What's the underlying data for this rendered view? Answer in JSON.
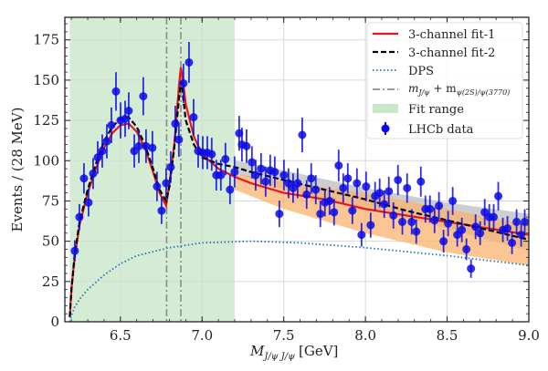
{
  "chart_data": {
    "type": "scatter",
    "title": "",
    "xlabel_main": "M",
    "xlabel_sub": "J/ψ J/ψ",
    "xlabel_unit": "[GeV]",
    "ylabel": "Events / (28 MeV)",
    "xlim": [
      6.16,
      9.0
    ],
    "ylim": [
      0,
      189
    ],
    "xticks": [
      6.5,
      7.0,
      7.5,
      8.0,
      8.5,
      9.0
    ],
    "xtick_labels": [
      "6.5",
      "7.0",
      "7.5",
      "8.0",
      "8.5",
      "9.0"
    ],
    "yticks": [
      0,
      25,
      50,
      75,
      100,
      125,
      150,
      175
    ],
    "ytick_labels": [
      "0",
      "25",
      "50",
      "75",
      "100",
      "125",
      "150",
      "175"
    ],
    "grid": true,
    "legend_position": "top-right",
    "legend": [
      {
        "key": "fit1",
        "label": "3-channel fit-1",
        "style": "solid",
        "color": "#e8161b"
      },
      {
        "key": "fit2",
        "label": "3-channel fit-2",
        "style": "dashed",
        "color": "#000000"
      },
      {
        "key": "dps",
        "label": "DPS",
        "style": "dotted",
        "color": "#1f77b4"
      },
      {
        "key": "thresholds",
        "label": "m_{J/ψ} + m_{ψ(2S)/ψ(3770)}",
        "label_main": "m",
        "label_sub1": "J/ψ",
        "label_plus": " + m",
        "label_sub2": "ψ(2S)/ψ(3770)",
        "style": "dashdot",
        "color": "#8c8c8c"
      },
      {
        "key": "fit_range",
        "label": "Fit range",
        "style": "patch",
        "color": "#c9e8c9"
      },
      {
        "key": "data",
        "label": "LHCb data",
        "style": "marker",
        "color": "#0a0ae6"
      }
    ],
    "fit_range": [
      6.19,
      7.2
    ],
    "threshold_lines": [
      6.783,
      6.87
    ],
    "data": {
      "name": "LHCb data",
      "x": [
        6.221,
        6.249,
        6.277,
        6.305,
        6.333,
        6.361,
        6.389,
        6.417,
        6.445,
        6.473,
        6.501,
        6.529,
        6.551,
        6.585,
        6.613,
        6.64,
        6.657,
        6.696,
        6.724,
        6.752,
        6.78,
        6.808,
        6.836,
        6.858,
        6.886,
        6.92,
        6.948,
        6.976,
        7.004,
        7.032,
        7.059,
        7.087,
        7.115,
        7.143,
        7.171,
        7.199,
        7.227,
        7.244,
        7.272,
        7.305,
        7.328,
        7.361,
        7.389,
        7.417,
        7.445,
        7.473,
        7.501,
        7.529,
        7.557,
        7.585,
        7.613,
        7.64,
        7.668,
        7.696,
        7.724,
        7.752,
        7.78,
        7.808,
        7.836,
        7.864,
        7.892,
        7.92,
        7.948,
        7.976,
        8.004,
        8.032,
        8.059,
        8.087,
        8.115,
        8.143,
        8.171,
        8.199,
        8.226,
        8.255,
        8.283,
        8.311,
        8.339,
        8.367,
        8.395,
        8.423,
        8.45,
        8.478,
        8.506,
        8.534,
        8.562,
        8.59,
        8.618,
        8.646,
        8.674,
        8.702,
        8.73,
        8.758,
        8.785,
        8.813,
        8.841,
        8.869,
        8.897,
        8.925,
        8.953,
        8.975
      ],
      "y": [
        44,
        65,
        89,
        74,
        92,
        102,
        106,
        112,
        122,
        143,
        125,
        126,
        131,
        106,
        109,
        140,
        109,
        108,
        84,
        69,
        86,
        96,
        123,
        113,
        148,
        161,
        127,
        106,
        105,
        105,
        104,
        91,
        91,
        101,
        82,
        93,
        117,
        110,
        109,
        99,
        91,
        95,
        87,
        94,
        93,
        67,
        91,
        86,
        83,
        86,
        116,
        79,
        89,
        82,
        67,
        74,
        75,
        68,
        97,
        83,
        89,
        69,
        86,
        54,
        84,
        60,
        78,
        80,
        73,
        81,
        66,
        88,
        62,
        83,
        62,
        56,
        87,
        70,
        70,
        63,
        72,
        50,
        61,
        75,
        54,
        57,
        45,
        33,
        59,
        55,
        68,
        65,
        65,
        78,
        57,
        58,
        49,
        62,
        54,
        62
      ]
    },
    "series": [
      {
        "name": "3-channel fit-1",
        "x": [
          6.19,
          6.2,
          6.22,
          6.25,
          6.3,
          6.35,
          6.4,
          6.45,
          6.5,
          6.55,
          6.6,
          6.65,
          6.7,
          6.74,
          6.78,
          6.8,
          6.83,
          6.86,
          6.87,
          6.88,
          6.9,
          6.95,
          7.0,
          7.1,
          7.2,
          7.3,
          7.5,
          7.75,
          8.0,
          8.25,
          8.5,
          8.75,
          9.0
        ],
        "y": [
          3,
          20,
          40,
          60,
          80,
          95,
          108,
          117,
          122,
          123,
          118,
          108,
          93,
          80,
          72,
          86,
          110,
          148,
          158,
          152,
          135,
          115,
          104,
          95,
          90,
          86,
          80,
          76,
          70,
          66,
          62,
          58,
          54
        ]
      },
      {
        "name": "3-channel fit-2",
        "x": [
          6.19,
          6.2,
          6.22,
          6.25,
          6.3,
          6.35,
          6.4,
          6.45,
          6.5,
          6.55,
          6.6,
          6.65,
          6.7,
          6.74,
          6.78,
          6.8,
          6.83,
          6.86,
          6.87,
          6.88,
          6.9,
          6.95,
          7.0,
          7.1,
          7.2,
          7.3,
          7.5,
          7.75,
          8.0,
          8.25,
          8.5,
          8.75,
          9.0
        ],
        "y": [
          3,
          20,
          41,
          62,
          82,
          98,
          112,
          121,
          126,
          127,
          121,
          110,
          95,
          82,
          75,
          84,
          108,
          140,
          149,
          143,
          125,
          110,
          102,
          98,
          96,
          93,
          88,
          82,
          76,
          69,
          63,
          57,
          51
        ]
      },
      {
        "name": "DPS",
        "x": [
          6.19,
          6.2,
          6.22,
          6.25,
          6.3,
          6.4,
          6.5,
          6.6,
          6.8,
          7.0,
          7.3,
          7.6,
          8.0,
          8.5,
          9.0
        ],
        "y": [
          0,
          4,
          9,
          14,
          20,
          29,
          36,
          41,
          46,
          49,
          50,
          49,
          46,
          41,
          35
        ]
      }
    ],
    "bands": [
      {
        "name": "fit-2 uncertainty",
        "color": "#bdbdbd",
        "x": [
          7.2,
          7.5,
          8.0,
          8.5,
          9.0
        ],
        "lower": [
          92,
          82,
          70,
          58,
          44
        ],
        "upper": [
          100,
          94,
          83,
          74,
          67
        ]
      },
      {
        "name": "fit-1 uncertainty",
        "color": "#f9b36d",
        "x": [
          7.2,
          7.5,
          8.0,
          8.5,
          9.0
        ],
        "lower": [
          82,
          70,
          55,
          43,
          35
        ],
        "upper": [
          92,
          87,
          80,
          70,
          60
        ]
      }
    ]
  }
}
